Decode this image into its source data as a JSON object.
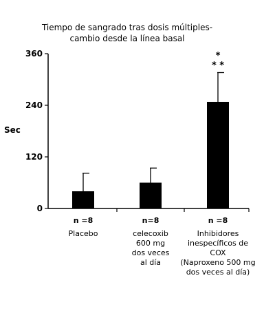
{
  "chart_data": {
    "type": "bar",
    "title_lines": [
      "Tiempo de sangrado tras dosis múltiples-",
      "cambio desde la línea basal"
    ],
    "ylabel": "Sec",
    "ylim": [
      0,
      360
    ],
    "yticks": [
      "0",
      "120",
      "240",
      "360"
    ],
    "ytick_values": [
      0,
      120,
      240,
      360
    ],
    "categories": [
      {
        "n": "n =8",
        "label_lines": [
          "Placebo"
        ]
      },
      {
        "n": "n=8",
        "label_lines": [
          "celecoxib",
          "600 mg",
          "dos veces",
          "al día"
        ]
      },
      {
        "n": "n =8",
        "label_lines": [
          "Inhibidores",
          "inespecíficos de",
          "COX",
          "(Naproxeno 500 mg",
          "dos veces al día)"
        ]
      }
    ],
    "values": [
      40,
      60,
      248
    ],
    "error_upper": [
      82,
      94,
      316
    ],
    "significance": {
      "category_index": 2,
      "lines": [
        "*",
        "* *"
      ]
    }
  }
}
